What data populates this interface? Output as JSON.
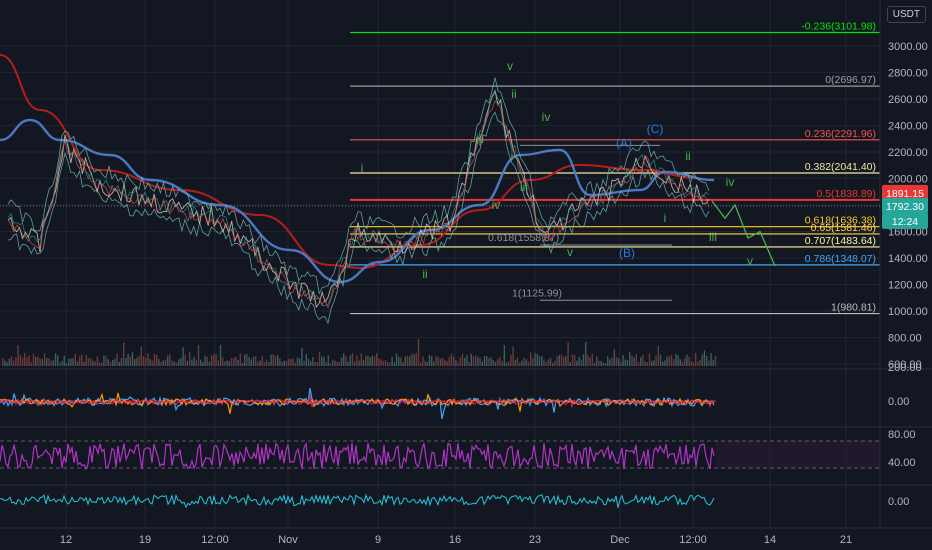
{
  "currency": "USDT",
  "colors": {
    "bg": "#131722",
    "grid": "#1f2433",
    "up": "#26a69a",
    "down": "#ef5350",
    "ma_blue": "#4a78c2",
    "ma_red": "#b71c1c",
    "wave_green": "#4caf50",
    "wave_blue": "#2b7bd6",
    "osc_orange": "#ff9800",
    "osc_blue": "#42a5f5",
    "rsi_purple": "#b035c4",
    "obv_cyan": "#26c6da"
  },
  "price_axis": {
    "ticks": [
      "3000.00",
      "2800.00",
      "2600.00",
      "2400.00",
      "2200.00",
      "2000.00",
      "1800.00",
      "1600.00",
      "1400.00",
      "1200.00",
      "1000.00",
      "800.00",
      "600.00"
    ],
    "range": [
      580,
      3200
    ]
  },
  "price_badges": {
    "last": "1891.15",
    "mark": "1792.30",
    "timer": "12:24"
  },
  "time_axis": {
    "ticks": [
      "12",
      "19",
      "12:00",
      "Nov",
      "9",
      "16",
      "23",
      "Dec",
      "12:00",
      "14",
      "21"
    ]
  },
  "osc_axis": {
    "ticks": [
      "200.00",
      "0.00"
    ]
  },
  "rsi_axis": {
    "ticks": [
      "80.00",
      "40.00"
    ]
  },
  "obv_axis": {
    "ticks": [
      "0.00"
    ]
  },
  "fib_levels": [
    {
      "label": "-0.236(3101.98)",
      "value": 3101.98,
      "color": "#00e600"
    },
    {
      "label": "0(2696.97)",
      "value": 2696.97,
      "color": "#9e9e9e"
    },
    {
      "label": "0.236(2291.96)",
      "value": 2291.96,
      "color": "#ef5350"
    },
    {
      "label": "0.382(2041.40)",
      "value": 2041.4,
      "color": "#f5e6a3"
    },
    {
      "label": "0.5(1838.89)",
      "value": 1838.89,
      "color": "#e53935"
    },
    {
      "label": "0.618(1636.38)",
      "value": 1636.38,
      "color": "#ffca28"
    },
    {
      "label": "0.65(1581.46)",
      "value": 1581.46,
      "color": "#ffd54f"
    },
    {
      "label": "0.707(1483.64)",
      "value": 1483.64,
      "color": "#fff59d"
    },
    {
      "label": "0.786(1348.07)",
      "value": 1348.07,
      "color": "#42a5f5"
    },
    {
      "label": "1(980.81)",
      "value": 980.81,
      "color": "#bdbdbd"
    }
  ],
  "inner_fib_levels": [
    {
      "label": "0.618(1558.37)",
      "value": 1558.37
    },
    {
      "label": "1(1125.99)",
      "value": 1125.99
    }
  ],
  "wave_labels": [
    {
      "text": "v",
      "color": "green"
    },
    {
      "text": "ii",
      "color": "green"
    },
    {
      "text": "iv",
      "color": "green"
    },
    {
      "text": "iii",
      "color": "green"
    },
    {
      "text": "i",
      "color": "green"
    },
    {
      "text": "i",
      "color": "green"
    },
    {
      "text": "ii",
      "color": "green"
    },
    {
      "text": "iii",
      "color": "green"
    },
    {
      "text": "iv",
      "color": "green"
    },
    {
      "text": "v",
      "color": "green"
    },
    {
      "text": "(A)",
      "color": "blue"
    },
    {
      "text": "(C)",
      "color": "blue"
    },
    {
      "text": "(B)",
      "color": "blue"
    },
    {
      "text": "ii",
      "color": "green"
    },
    {
      "text": "iv",
      "color": "green"
    },
    {
      "text": "i",
      "color": "green"
    },
    {
      "text": "iii",
      "color": "green"
    },
    {
      "text": "v",
      "color": "green"
    }
  ],
  "chart_data": {
    "type": "line",
    "title": "",
    "xlabel": "",
    "ylabel": "USDT",
    "ylim": [
      580,
      3200
    ],
    "x": [
      "Oct 8",
      "Oct 12",
      "Oct 15",
      "Oct 19",
      "Oct 22",
      "Oct 26",
      "Oct 29",
      "Nov 1",
      "Nov 5",
      "Nov 9",
      "Nov 12",
      "Nov 16",
      "Nov 19",
      "Nov 21",
      "Nov 23",
      "Nov 26",
      "Nov 29",
      "Dec 1",
      "Dec 3",
      "Dec 5",
      "Dec 7"
    ],
    "series": [
      {
        "values": [
          1700,
          1500,
          2250,
          1950,
          1850,
          1750,
          1700,
          1450,
          1200,
          1050,
          1600,
          1500,
          1650,
          2650,
          2200,
          1550,
          1750,
          1850,
          2150,
          1950,
          1830
        ]
      }
    ],
    "projection": [
      {
        "x": "Dec 7",
        "y": 1830
      },
      {
        "x": "Dec 8",
        "y": 1700
      },
      {
        "x": "Dec 9",
        "y": 1800
      },
      {
        "x": "Dec 10",
        "y": 1550
      },
      {
        "x": "Dec 11",
        "y": 1600
      },
      {
        "x": "Dec 12",
        "y": 1340
      }
    ],
    "grid": true
  }
}
